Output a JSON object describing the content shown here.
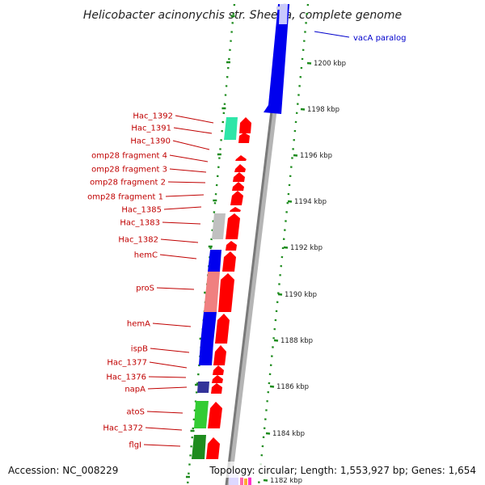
{
  "title": "Helicobacter acinonychis str. Sheeba, complete genome",
  "footer": {
    "accession": "Accession: NC_008229",
    "topology": "Topology: circular; Length: 1,553,927 bp; Genes: 1,654"
  },
  "callout": "vacA paralog",
  "colors": {
    "red": "#ff0000",
    "blue": "#0000ee",
    "label_red": "#c00000",
    "gc_green": "#1e8c1e",
    "axis_gray": "#888888"
  },
  "genes": [
    {
      "name": "Hac_1392"
    },
    {
      "name": "Hac_1391"
    },
    {
      "name": "Hac_1390"
    },
    {
      "name": "omp28 fragment 4"
    },
    {
      "name": "omp28 fragment 3"
    },
    {
      "name": "omp28 fragment 2"
    },
    {
      "name": "omp28 fragment 1"
    },
    {
      "name": "Hac_1385"
    },
    {
      "name": "Hac_1383"
    },
    {
      "name": "Hac_1382"
    },
    {
      "name": "hemC"
    },
    {
      "name": "proS"
    },
    {
      "name": "hemA"
    },
    {
      "name": "ispB"
    },
    {
      "name": "Hac_1377"
    },
    {
      "name": "Hac_1376"
    },
    {
      "name": "napA"
    },
    {
      "name": "atoS"
    },
    {
      "name": "Hac_1372"
    },
    {
      "name": "flgI"
    }
  ],
  "ticks": [
    "1200 kbp",
    "1198 kbp",
    "1196 kbp",
    "1194 kbp",
    "1192 kbp",
    "1190 kbp",
    "1188 kbp",
    "1186 kbp",
    "1184 kbp",
    "1182 kbp"
  ]
}
